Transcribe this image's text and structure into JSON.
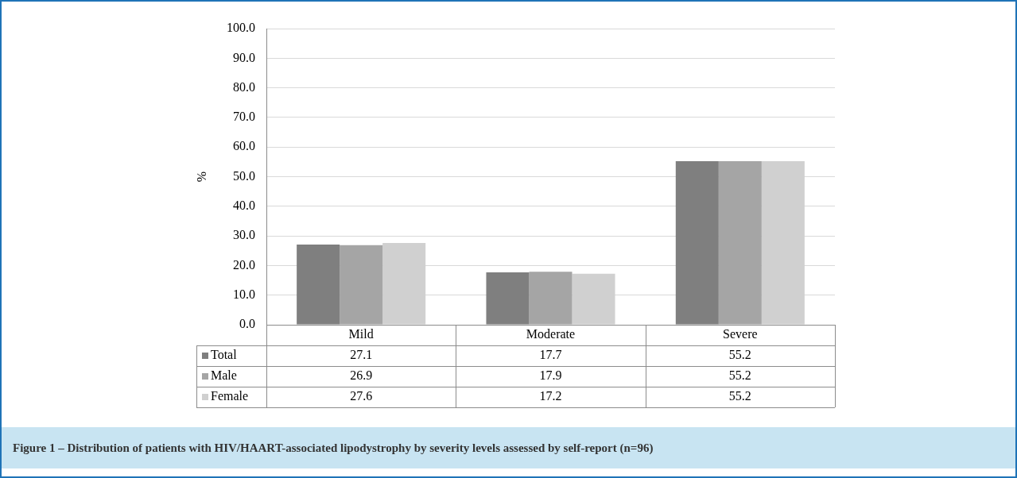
{
  "chart_data": {
    "type": "bar",
    "title": "Figure 1 – Distribution of patients with HIV/HAART-associated lipodystrophy by severity levels assessed by self-report (n=96)",
    "ylabel": "%",
    "categories": [
      "Mild",
      "Moderate",
      "Severe"
    ],
    "series": [
      {
        "name": "Total",
        "color": "#7f7f7f",
        "values": [
          27.1,
          17.7,
          55.2
        ]
      },
      {
        "name": "Male",
        "color": "#a5a5a5",
        "values": [
          26.9,
          17.9,
          55.2
        ]
      },
      {
        "name": "Female",
        "color": "#d0d0d0",
        "values": [
          27.6,
          17.2,
          55.2
        ]
      }
    ],
    "ylim": [
      0,
      100
    ],
    "yticks": [
      {
        "value": 0,
        "label": "0.0"
      },
      {
        "value": 10,
        "label": "10.0"
      },
      {
        "value": 20,
        "label": "20.0"
      },
      {
        "value": 30,
        "label": "30.0"
      },
      {
        "value": 40,
        "label": "40.0"
      },
      {
        "value": 50,
        "label": "50.0"
      },
      {
        "value": 60,
        "label": "60.0"
      },
      {
        "value": 70,
        "label": "70.0"
      },
      {
        "value": 80,
        "label": "80.0"
      },
      {
        "value": 90,
        "label": "90.0"
      },
      {
        "value": 100,
        "label": "100.0"
      }
    ],
    "grid": "y",
    "legend": "bottom",
    "data_labels": true
  }
}
